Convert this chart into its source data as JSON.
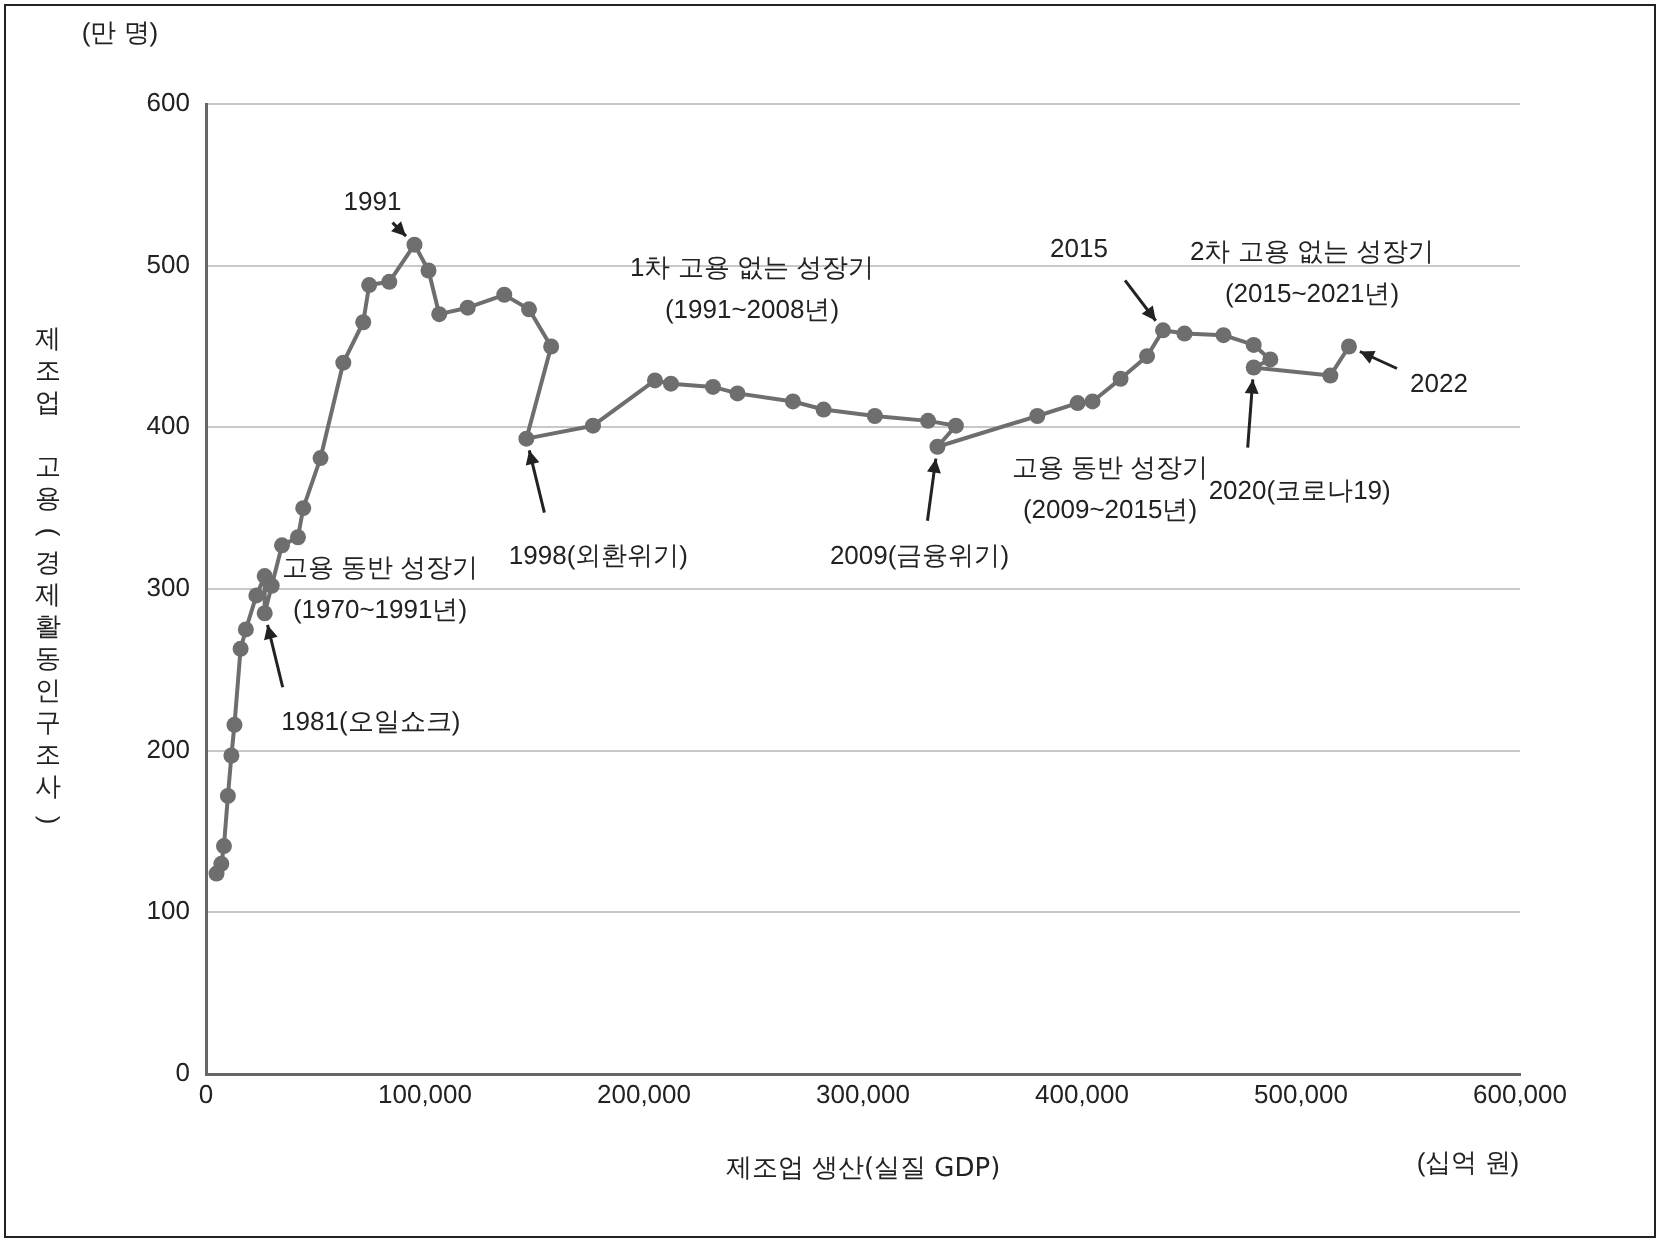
{
  "chart_data": {
    "type": "line",
    "xlabel": "제조업 생산(실질 GDP)",
    "ylabel": "제조업 고용(경제활동인구조사)",
    "x": [
      4800,
      7000,
      8200,
      10000,
      11600,
      13000,
      15800,
      18200,
      23000,
      26800,
      26800,
      30000,
      34700,
      42000,
      44400,
      52300,
      62700,
      71800,
      74500,
      83700,
      95200,
      101600,
      106500,
      119500,
      136200,
      147500,
      157600,
      146300,
      176700,
      205000,
      212300,
      231500,
      242700,
      268000,
      282000,
      305400,
      329700,
      342400,
      334000,
      379600,
      398000,
      404800,
      417600,
      429700,
      437000,
      446800,
      464600,
      478400,
      486000,
      478400,
      513400,
      521900
    ],
    "values": [
      124,
      130,
      141,
      172,
      197,
      216,
      263,
      275,
      296,
      308,
      285,
      302,
      327,
      332,
      350,
      381,
      440,
      465,
      488,
      490,
      513,
      497,
      470,
      474,
      482,
      473,
      450,
      393,
      401,
      429,
      427,
      425,
      421,
      416,
      411,
      407,
      404,
      401,
      388,
      407,
      415,
      416,
      430,
      444,
      460,
      458,
      457,
      451,
      442,
      437,
      432,
      450
    ],
    "color": "#6e6e6e",
    "marker": "circle",
    "line_style": "solid",
    "grid": "y",
    "legend": false,
    "xlim": [
      0,
      600000
    ],
    "xticks": [
      0,
      {
        "value": 100000,
        "label": "100,000"
      },
      {
        "value": 200000,
        "label": "200,000"
      },
      {
        "value": 300000,
        "label": "300,000"
      },
      {
        "value": 400000,
        "label": "400,000"
      },
      {
        "value": 500000,
        "label": "500,000"
      },
      {
        "value": 600000,
        "label": "600,000"
      }
    ],
    "ylim": [
      0,
      600
    ],
    "yticks": [
      0,
      100,
      200,
      300,
      400,
      500,
      600
    ],
    "annotations": [
      {
        "text": "1991",
        "x": 95200,
        "y": 513
      },
      {
        "text": "1981(오일쇼크)",
        "x": 26800,
        "y": 285
      },
      {
        "text": "1998(외환위기)",
        "x": 146300,
        "y": 393
      },
      {
        "text": "2009(금융위기)",
        "x": 334000,
        "y": 388
      },
      {
        "text": "2015",
        "x": 437000,
        "y": 460
      },
      {
        "text": "2020(코로나19)",
        "x": 478400,
        "y": 437
      },
      {
        "text": "2022",
        "x": 521900,
        "y": 450
      },
      "고용 동반 성장기\n(1970~1991년)",
      "1차 고용 없는 성장기\n(1991~2008년)",
      "고용 동반 성장기\n(2009~2015년)",
      "2차 고용 없는 성장기\n(2015~2021년)",
      "(만 명)",
      "(십억 원)"
    ]
  }
}
